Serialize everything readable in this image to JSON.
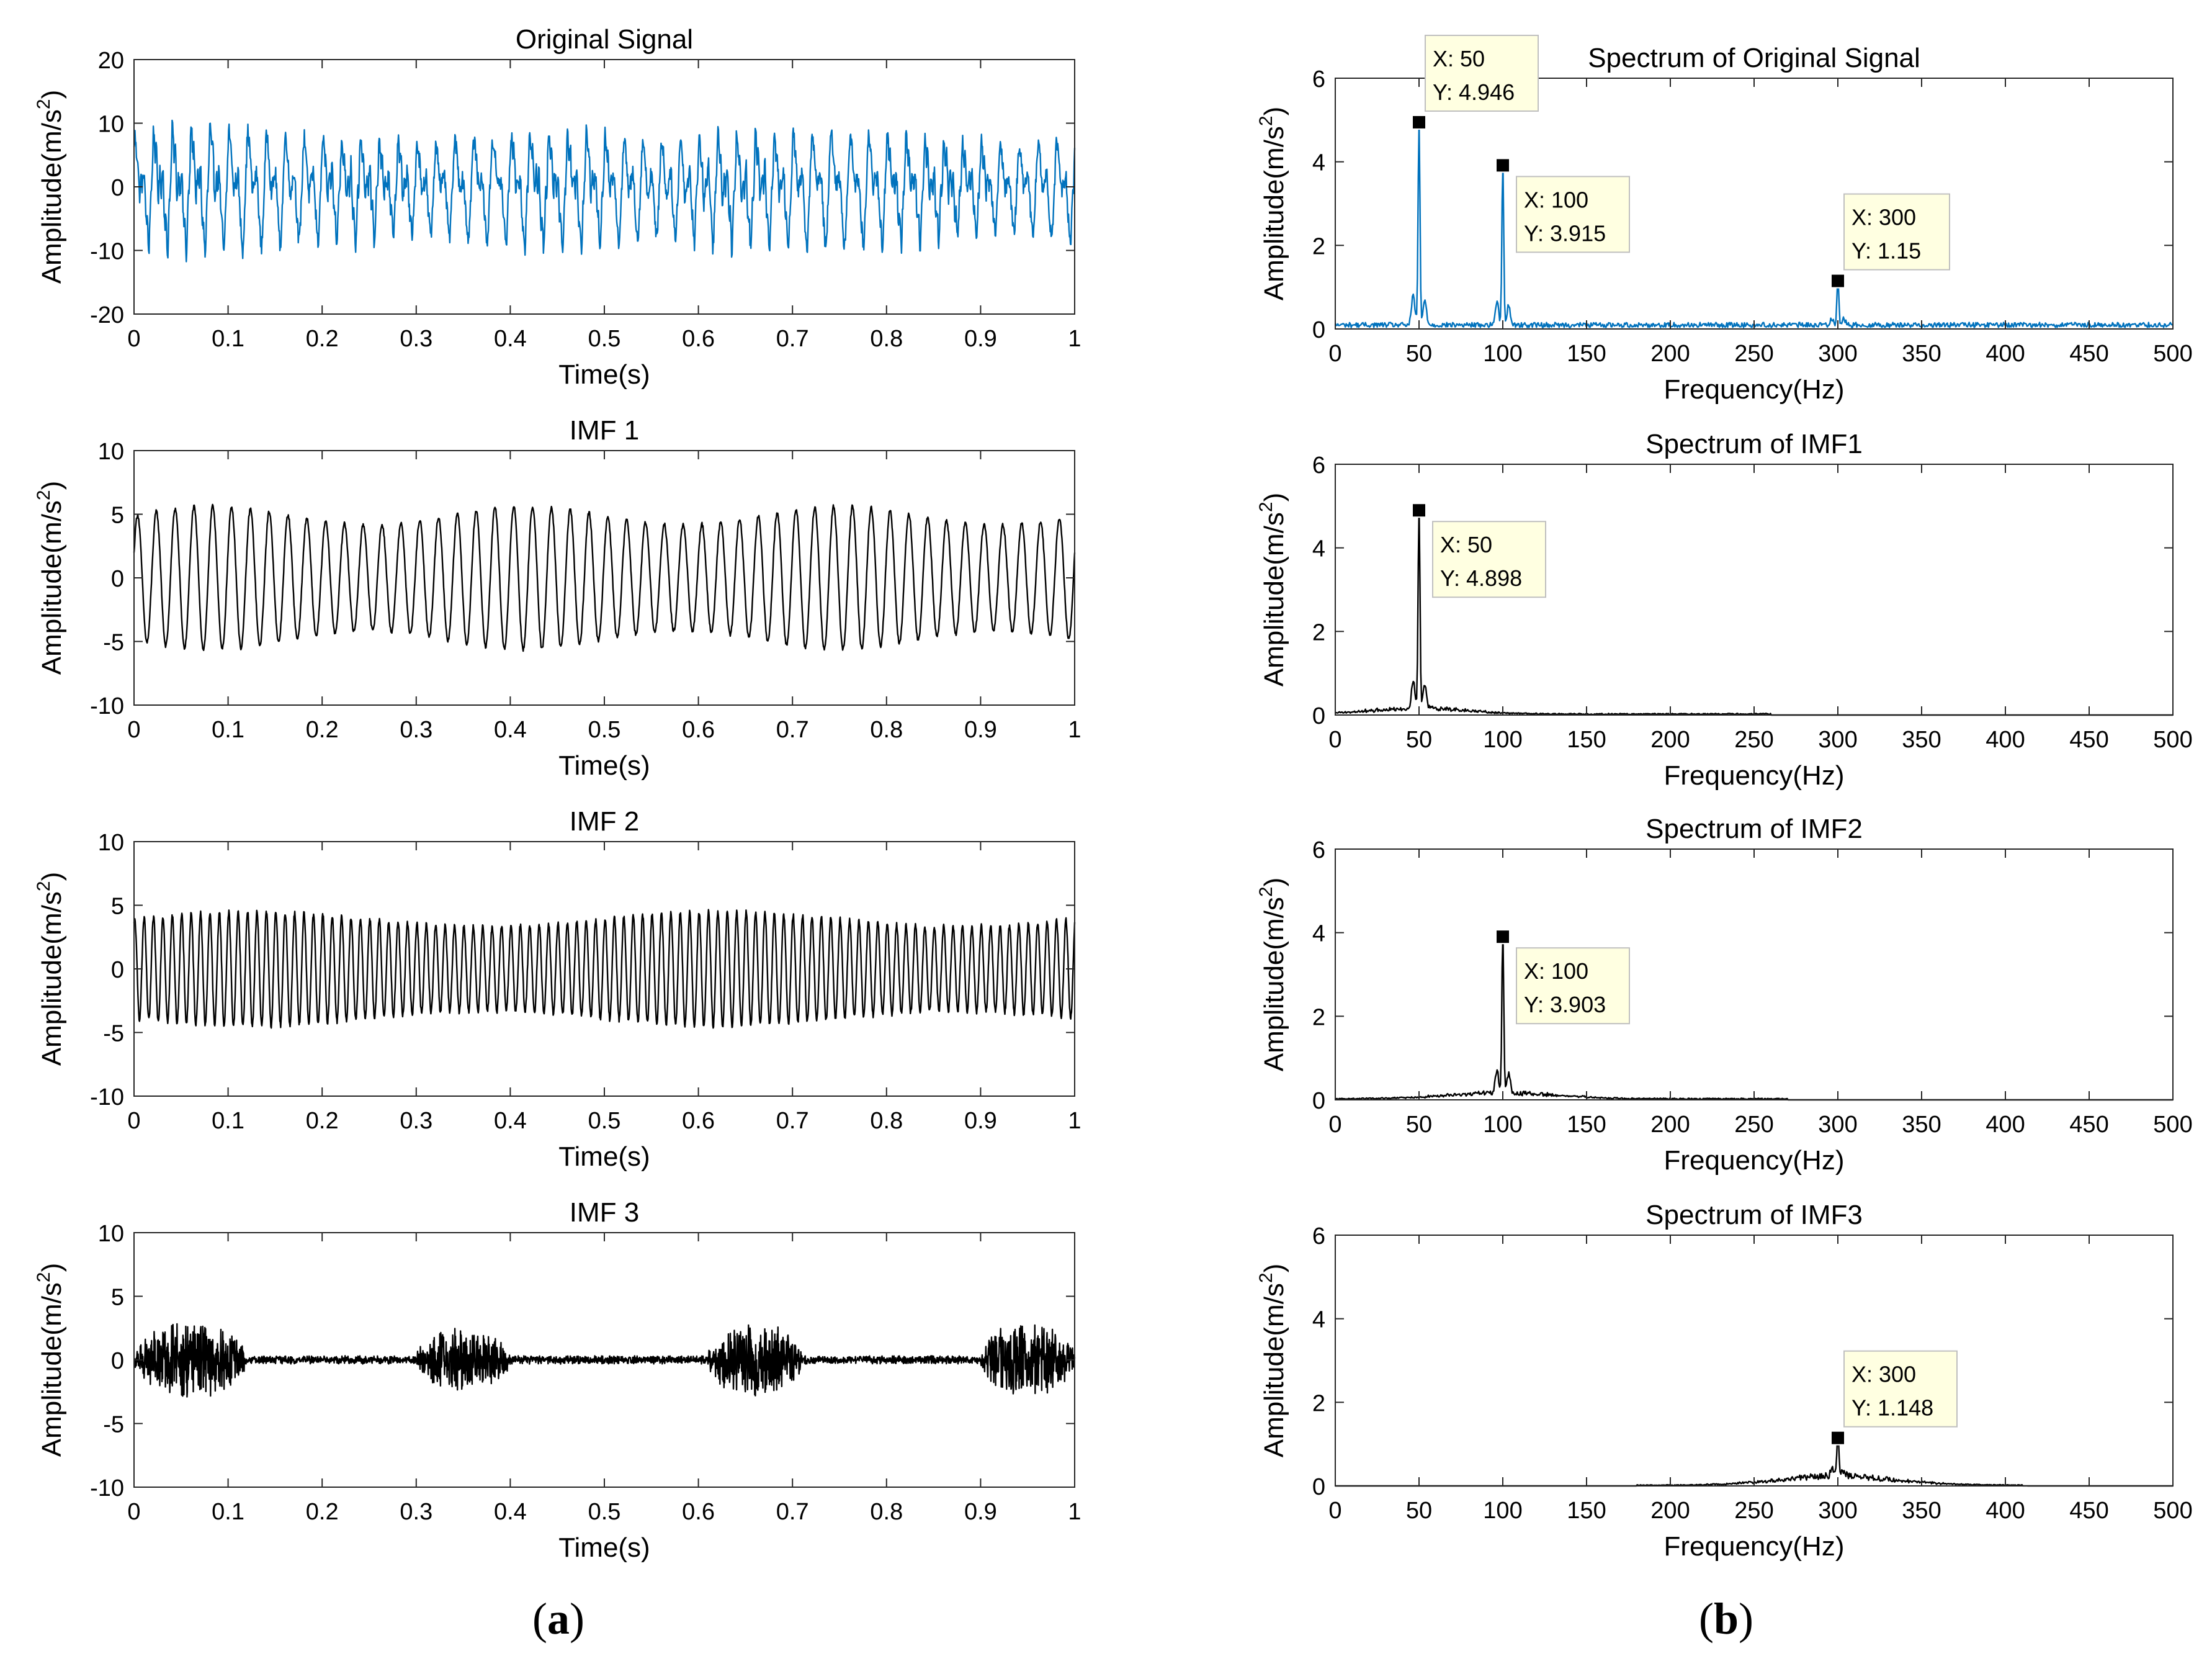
{
  "figure": {
    "panel_labels": [
      {
        "open": "(",
        "letter": "a",
        "close": ")"
      },
      {
        "open": "(",
        "letter": "b",
        "close": ")"
      }
    ]
  },
  "colors": {
    "blue": "#0072BD",
    "black": "#000000",
    "datatip_bg": "#FFFFE1",
    "axis": "#262626"
  },
  "chart_data": [
    {
      "id": "orig-time",
      "type": "line",
      "title": "Original Signal",
      "xlabel": "Time(s)",
      "ylabel_base": "Amplitude(m/s",
      "ylabel_sup": "2",
      "ylabel_end": ")",
      "xlim": [
        0,
        1
      ],
      "ylim": [
        -20,
        20
      ],
      "xticks": [
        0,
        0.1,
        0.2,
        0.3,
        0.4,
        0.5,
        0.6,
        0.7,
        0.8,
        0.9,
        1
      ],
      "xticklabels": [
        "0",
        "0.1",
        "0.2",
        "0.3",
        "0.4",
        "0.5",
        "0.6",
        "0.7",
        "0.8",
        "0.9",
        "1"
      ],
      "yticks": [
        -20,
        -10,
        0,
        10,
        20
      ],
      "yticklabels": [
        "-20",
        "-10",
        "0",
        "10",
        "20"
      ],
      "color": "blue",
      "series": {
        "kind": "sum",
        "components": [
          {
            "freq": 50,
            "amp": 4.946,
            "amp_mod": 0.18,
            "mod_freq": 3,
            "phase": 0.4
          },
          {
            "freq": 100,
            "amp": 3.915,
            "amp_mod": 0.15,
            "mod_freq": 2,
            "phase": 1.1
          },
          {
            "freq": 300,
            "amp": 1.15,
            "amp_mod": 0.9,
            "mod_freq": 5,
            "phase": 0.2
          }
        ],
        "noise": 1.4,
        "points": 2000
      }
    },
    {
      "id": "imf1-time",
      "type": "line",
      "title": "IMF 1",
      "xlabel": "Time(s)",
      "ylabel_base": "Amplitude(m/s",
      "ylabel_sup": "2",
      "ylabel_end": ")",
      "xlim": [
        0,
        1
      ],
      "ylim": [
        -10,
        10
      ],
      "xticks": [
        0,
        0.1,
        0.2,
        0.3,
        0.4,
        0.5,
        0.6,
        0.7,
        0.8,
        0.9,
        1
      ],
      "xticklabels": [
        "0",
        "0.1",
        "0.2",
        "0.3",
        "0.4",
        "0.5",
        "0.6",
        "0.7",
        "0.8",
        "0.9",
        "1"
      ],
      "yticks": [
        -10,
        -5,
        0,
        5,
        10
      ],
      "yticklabels": [
        "-10",
        "-5",
        "0",
        "5",
        "10"
      ],
      "color": "black",
      "series": {
        "kind": "sum",
        "components": [
          {
            "freq": 50,
            "amp": 4.898,
            "amp_mod": 0.15,
            "mod_freq": 3,
            "phase": 0.4
          }
        ],
        "noise": 0.15,
        "points": 2000
      }
    },
    {
      "id": "imf2-time",
      "type": "line",
      "title": "IMF 2",
      "xlabel": "Time(s)",
      "ylabel_base": "Amplitude(m/s",
      "ylabel_sup": "2",
      "ylabel_end": ")",
      "xlim": [
        0,
        1
      ],
      "ylim": [
        -10,
        10
      ],
      "xticks": [
        0,
        0.1,
        0.2,
        0.3,
        0.4,
        0.5,
        0.6,
        0.7,
        0.8,
        0.9,
        1
      ],
      "xticklabels": [
        "0",
        "0.1",
        "0.2",
        "0.3",
        "0.4",
        "0.5",
        "0.6",
        "0.7",
        "0.8",
        "0.9",
        "1"
      ],
      "yticks": [
        -10,
        -5,
        0,
        5,
        10
      ],
      "yticklabels": [
        "-10",
        "-5",
        "0",
        "5",
        "10"
      ],
      "color": "black",
      "series": {
        "kind": "sum",
        "components": [
          {
            "freq": 100,
            "amp": 3.903,
            "amp_mod": 0.15,
            "mod_freq": 2,
            "phase": 1.1
          }
        ],
        "noise": 0.2,
        "points": 2400
      }
    },
    {
      "id": "imf3-time",
      "type": "line",
      "title": "IMF 3",
      "xlabel": "Time(s)",
      "ylabel_base": "Amplitude(m/s",
      "ylabel_sup": "2",
      "ylabel_end": ")",
      "xlim": [
        0,
        1
      ],
      "ylim": [
        -10,
        10
      ],
      "xticks": [
        0,
        0.1,
        0.2,
        0.3,
        0.4,
        0.5,
        0.6,
        0.7,
        0.8,
        0.9,
        1
      ],
      "xticklabels": [
        "0",
        "0.1",
        "0.2",
        "0.3",
        "0.4",
        "0.5",
        "0.6",
        "0.7",
        "0.8",
        "0.9",
        "1"
      ],
      "yticks": [
        -10,
        -5,
        0,
        5,
        10
      ],
      "yticklabels": [
        "-10",
        "-5",
        "0",
        "5",
        "10"
      ],
      "color": "black",
      "series": {
        "kind": "bursts",
        "freq": 300,
        "base_noise": 0.3,
        "bursts": [
          {
            "start": 0.0,
            "end": 0.12,
            "amp": 2.6
          },
          {
            "start": 0.3,
            "end": 0.4,
            "amp": 2.2
          },
          {
            "start": 0.61,
            "end": 0.71,
            "amp": 2.6
          },
          {
            "start": 0.9,
            "end": 1.0,
            "amp": 2.6
          }
        ],
        "points": 3000
      }
    },
    {
      "id": "orig-spec",
      "type": "line",
      "title": "Spectrum of Original Signal",
      "xlabel": "Frequency(Hz)",
      "ylabel_base": "Amplitude(m/s",
      "ylabel_sup": "2",
      "ylabel_end": ")",
      "xlim": [
        0,
        500
      ],
      "ylim": [
        0,
        6
      ],
      "xticks": [
        0,
        50,
        100,
        150,
        200,
        250,
        300,
        350,
        400,
        450,
        500
      ],
      "xticklabels": [
        "0",
        "50",
        "100",
        "150",
        "200",
        "250",
        "300",
        "350",
        "400",
        "450",
        "500"
      ],
      "yticks": [
        0,
        2,
        4,
        6
      ],
      "yticklabels": [
        "0",
        "2",
        "4",
        "6"
      ],
      "color": "blue",
      "series": {
        "kind": "spectrum",
        "floor": 0.12,
        "floor_range": [
          0,
          500
        ],
        "hump": null,
        "peaks": [
          {
            "x": 50,
            "y": 4.946
          },
          {
            "x": 100,
            "y": 3.915
          },
          {
            "x": 300,
            "y": 1.15
          }
        ],
        "points": 1000
      },
      "datatips": [
        {
          "x": 50,
          "y": 4.946,
          "line1": "X: 50",
          "line2": "Y: 4.946",
          "placement": "above-right"
        },
        {
          "x": 100,
          "y": 3.915,
          "line1": "X: 100",
          "line2": "Y: 3.915",
          "placement": "right-below"
        },
        {
          "x": 300,
          "y": 1.15,
          "line1": "X: 300",
          "line2": "Y: 1.15",
          "placement": "above-right"
        }
      ]
    },
    {
      "id": "imf1-spec",
      "type": "line",
      "title": "Spectrum of IMF1",
      "xlabel": "Frequency(Hz)",
      "ylabel_base": "Amplitude(m/s",
      "ylabel_sup": "2",
      "ylabel_end": ")",
      "xlim": [
        0,
        500
      ],
      "ylim": [
        0,
        6
      ],
      "xticks": [
        0,
        50,
        100,
        150,
        200,
        250,
        300,
        350,
        400,
        450,
        500
      ],
      "xticklabels": [
        "0",
        "50",
        "100",
        "150",
        "200",
        "250",
        "300",
        "350",
        "400",
        "450",
        "500"
      ],
      "yticks": [
        0,
        2,
        4,
        6
      ],
      "yticklabels": [
        "0",
        "2",
        "4",
        "6"
      ],
      "color": "black",
      "series": {
        "kind": "spectrum",
        "floor": 0.03,
        "floor_range": [
          0,
          260
        ],
        "hump": {
          "center": 50,
          "width": 28,
          "height": 0.14
        },
        "peaks": [
          {
            "x": 50,
            "y": 4.898
          }
        ],
        "points": 1000
      },
      "datatips": [
        {
          "x": 50,
          "y": 4.898,
          "line1": "X: 50",
          "line2": "Y: 4.898",
          "placement": "right-below"
        }
      ]
    },
    {
      "id": "imf2-spec",
      "type": "line",
      "title": "Spectrum of IMF2",
      "xlabel": "Frequency(Hz)",
      "ylabel_base": "Amplitude(m/s",
      "ylabel_sup": "2",
      "ylabel_end": ")",
      "xlim": [
        0,
        500
      ],
      "ylim": [
        0,
        6
      ],
      "xticks": [
        0,
        50,
        100,
        150,
        200,
        250,
        300,
        350,
        400,
        450,
        500
      ],
      "xticklabels": [
        "0",
        "50",
        "100",
        "150",
        "200",
        "250",
        "300",
        "350",
        "400",
        "450",
        "500"
      ],
      "yticks": [
        0,
        2,
        4,
        6
      ],
      "yticklabels": [
        "0",
        "2",
        "4",
        "6"
      ],
      "color": "black",
      "series": {
        "kind": "spectrum",
        "floor": 0.03,
        "floor_range": [
          0,
          270
        ],
        "hump": {
          "center": 100,
          "width": 32,
          "height": 0.14
        },
        "peaks": [
          {
            "x": 100,
            "y": 3.903
          }
        ],
        "points": 1000
      },
      "datatips": [
        {
          "x": 100,
          "y": 3.903,
          "line1": "X: 100",
          "line2": "Y: 3.903",
          "placement": "right-below"
        }
      ]
    },
    {
      "id": "imf3-spec",
      "type": "line",
      "title": "Spectrum of IMF3",
      "xlabel": "Frequency(Hz)",
      "ylabel_base": "Amplitude(m/s",
      "ylabel_sup": "2",
      "ylabel_end": ")",
      "xlim": [
        0,
        500
      ],
      "ylim": [
        0,
        6
      ],
      "xticks": [
        0,
        50,
        100,
        150,
        200,
        250,
        300,
        350,
        400,
        450,
        500
      ],
      "xticklabels": [
        "0",
        "50",
        "100",
        "150",
        "200",
        "250",
        "300",
        "350",
        "400",
        "450",
        "500"
      ],
      "yticks": [
        0,
        2,
        4,
        6
      ],
      "yticklabels": [
        "0",
        "2",
        "4",
        "6"
      ],
      "color": "black",
      "series": {
        "kind": "spectrum",
        "floor": 0.02,
        "floor_range": [
          180,
          410
        ],
        "hump": {
          "center": 300,
          "width": 34,
          "height": 0.22
        },
        "peaks": [
          {
            "x": 300,
            "y": 1.148
          }
        ],
        "points": 1000
      },
      "datatips": [
        {
          "x": 300,
          "y": 1.148,
          "line1": "X: 300",
          "line2": "Y: 1.148",
          "placement": "above-right"
        }
      ]
    }
  ]
}
